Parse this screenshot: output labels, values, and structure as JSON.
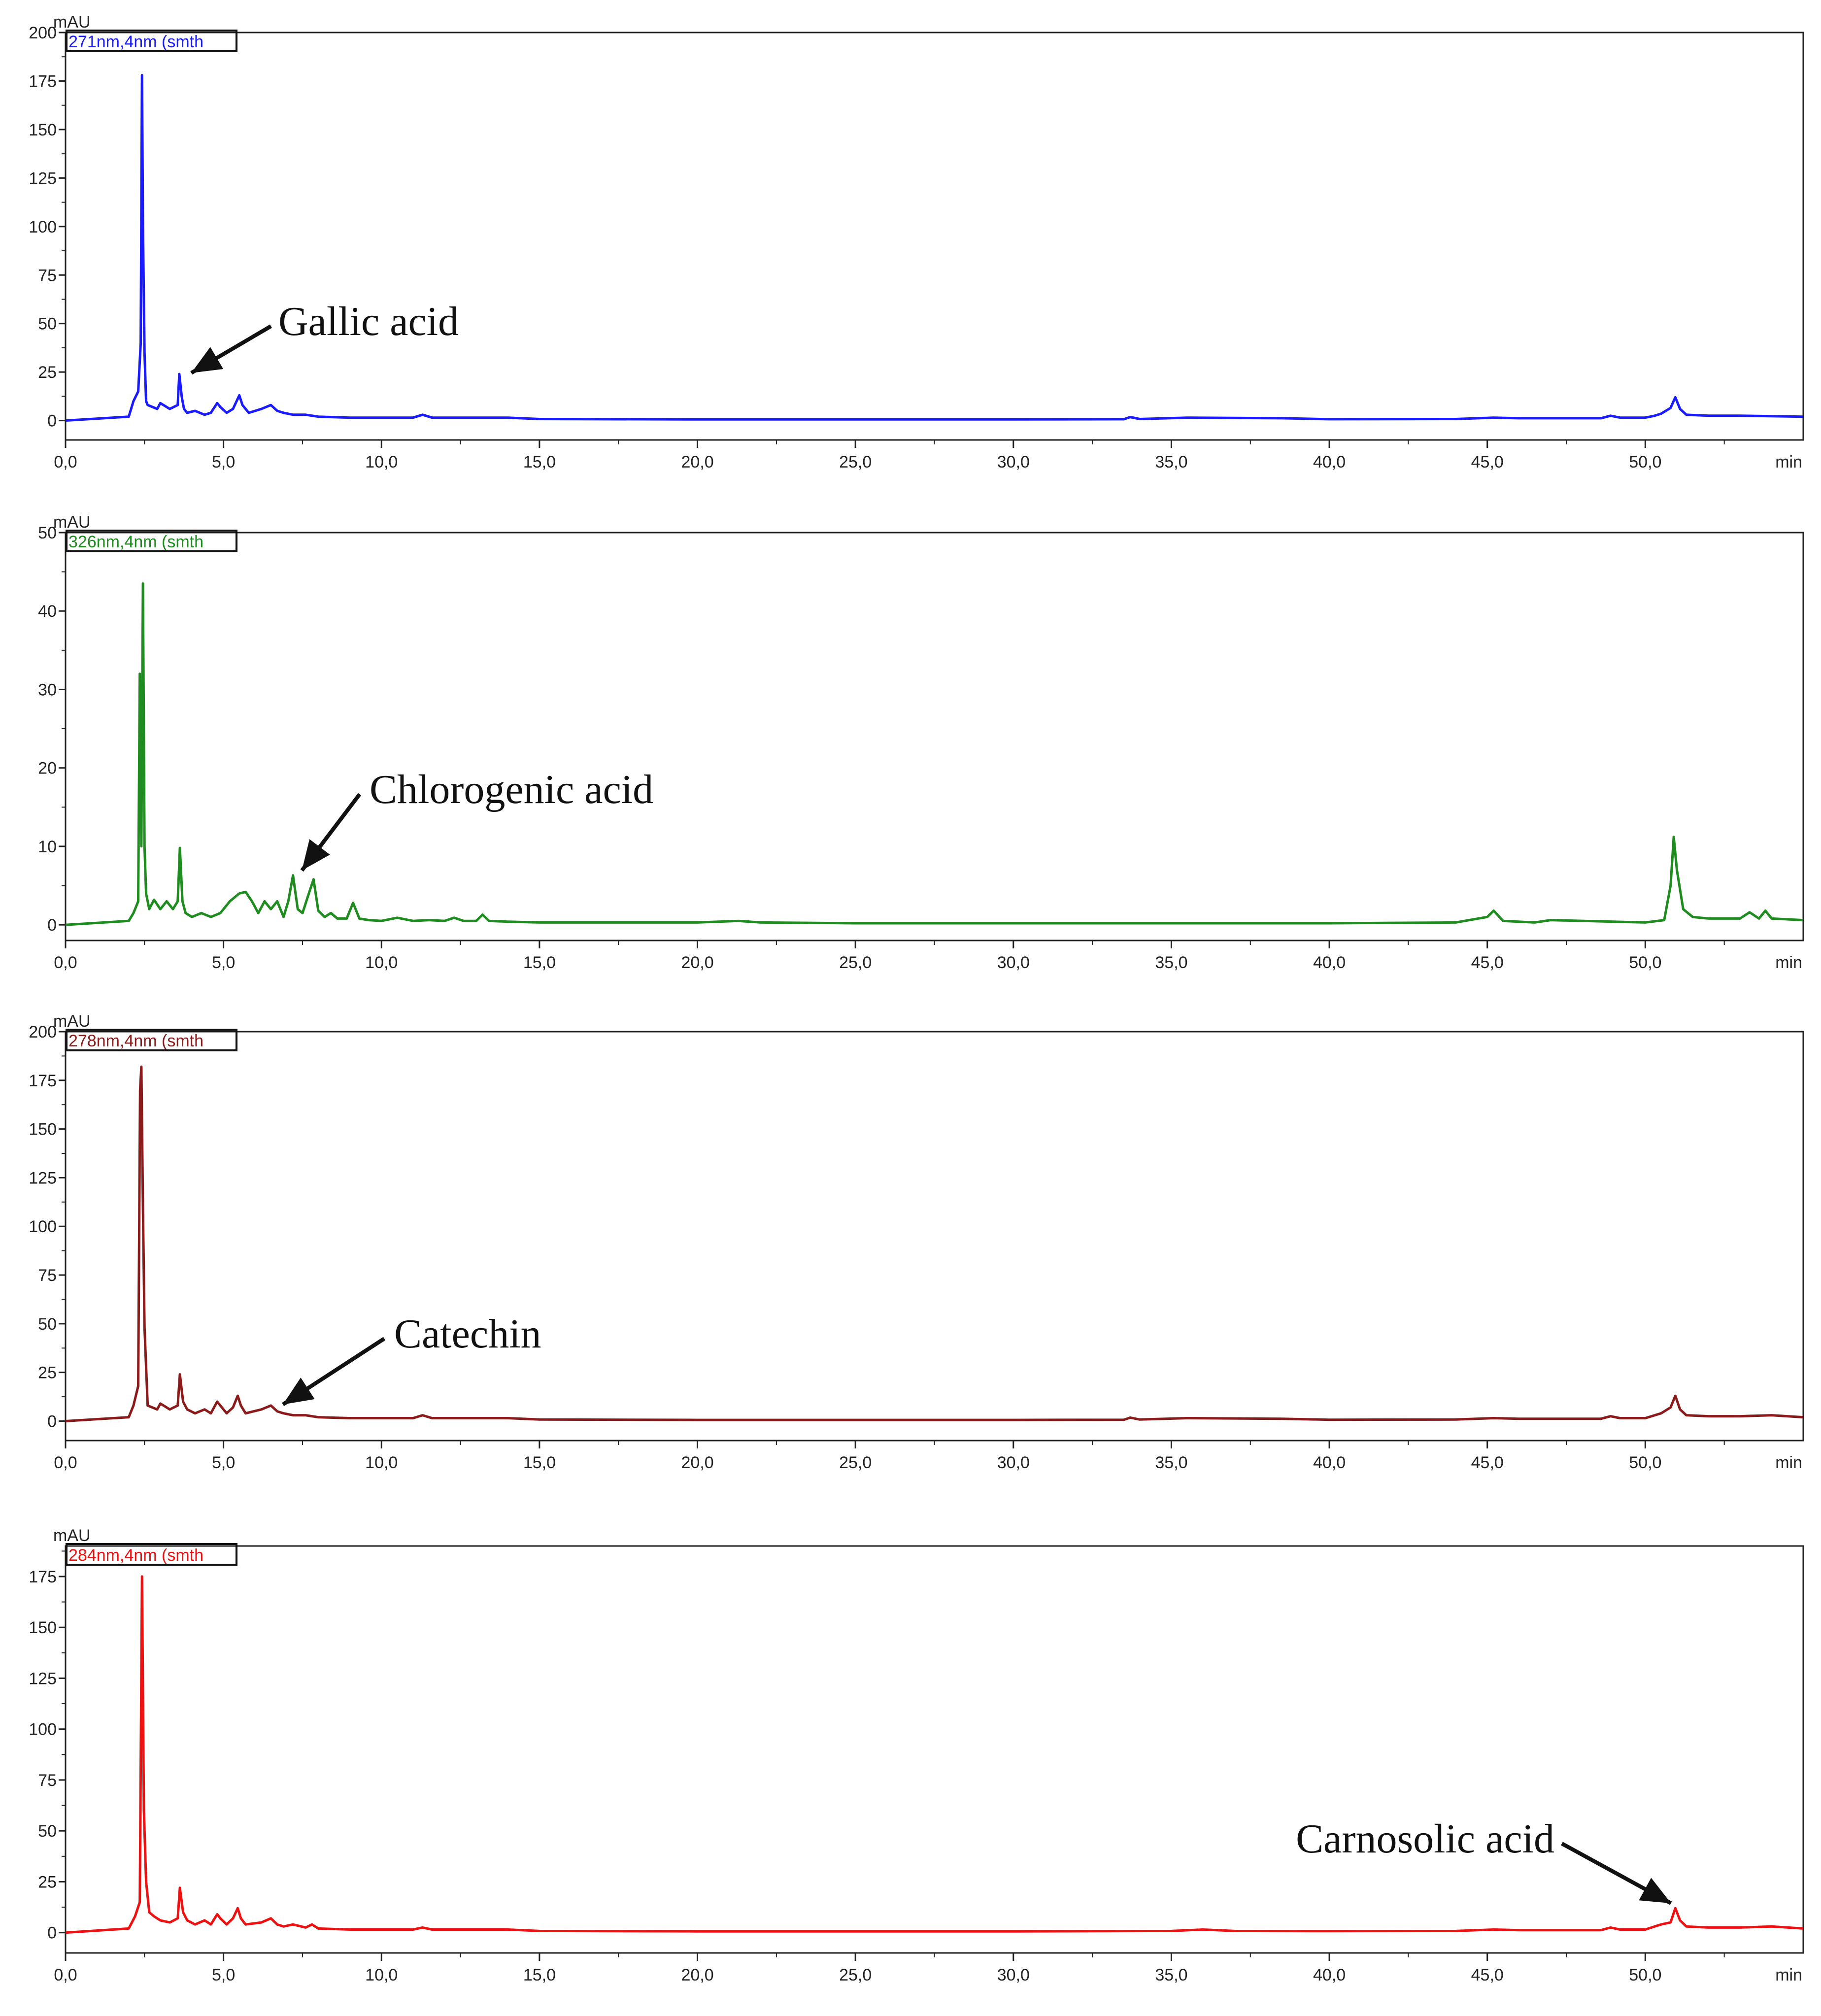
{
  "chart_data": [
    {
      "type": "line",
      "channel_label": "271nm,4nm (smth",
      "color": "#1a1aff",
      "ylabel": "mAU",
      "xlabel_unit": "min",
      "ylim": [
        -10,
        200
      ],
      "xlim": [
        0,
        55
      ],
      "x_ticks": [
        "0,0",
        "5,0",
        "10,0",
        "15,0",
        "20,0",
        "25,0",
        "30,0",
        "35,0",
        "40,0",
        "45,0",
        "50,0"
      ],
      "y_ticks": [
        "0",
        "25",
        "50",
        "75",
        "100",
        "125",
        "150",
        "175",
        "200"
      ],
      "grid": false,
      "annotation": {
        "text": "Gallic acid",
        "peak_x": 3.7,
        "peak_y": 22
      },
      "series": [
        {
          "x": [
            0,
            2.0,
            2.15,
            2.3,
            2.38,
            2.42,
            2.45,
            2.5,
            2.55,
            2.6,
            2.9,
            3.0,
            3.3,
            3.55,
            3.6,
            3.68,
            3.75,
            3.85,
            4.1,
            4.4,
            4.6,
            4.8,
            4.9,
            5.1,
            5.3,
            5.5,
            5.6,
            5.8,
            6.2,
            6.5,
            6.7,
            6.9,
            7.2,
            7.6,
            8.0,
            9.0,
            10.0,
            11.0,
            11.3,
            11.6,
            12.0,
            13.0,
            14.0,
            15.0,
            20.0,
            25.0,
            30.0,
            33.5,
            33.7,
            34.0,
            35.5,
            38.5,
            40.0,
            44.0,
            45.2,
            46.0,
            48.6,
            48.9,
            49.2,
            50.0,
            50.3,
            50.5,
            50.8,
            50.95,
            51.1,
            51.3,
            52.0,
            53.0,
            55.0
          ],
          "y": [
            0,
            2,
            10,
            15,
            40,
            178,
            100,
            35,
            10,
            8,
            6,
            9,
            6,
            8,
            24,
            12,
            6,
            4,
            5,
            3,
            4,
            9,
            7,
            4,
            6,
            13,
            8,
            4,
            6,
            8,
            5,
            4,
            3,
            3,
            2,
            1.5,
            1.5,
            1.5,
            3,
            1.5,
            1.5,
            1.5,
            1.5,
            0.8,
            0.6,
            0.6,
            0.6,
            0.7,
            1.8,
            0.8,
            1.5,
            1.2,
            0.7,
            0.8,
            1.5,
            1.2,
            1.2,
            2.5,
            1.5,
            1.5,
            2.5,
            3.5,
            6.5,
            12,
            6,
            3,
            2.5,
            2.5,
            2
          ]
        }
      ]
    },
    {
      "type": "line",
      "channel_label": "326nm,4nm (smth",
      "color": "#1e8c1e",
      "ylabel": "mAU",
      "xlabel_unit": "min",
      "ylim": [
        -2,
        50
      ],
      "xlim": [
        0,
        55
      ],
      "x_ticks": [
        "0,0",
        "5,0",
        "10,0",
        "15,0",
        "20,0",
        "25,0",
        "30,0",
        "35,0",
        "40,0",
        "45,0",
        "50,0"
      ],
      "y_ticks": [
        "0",
        "10",
        "20",
        "30",
        "40",
        "50"
      ],
      "grid": false,
      "annotation": {
        "text": "Chlorogenic acid",
        "peak_x": 7.2,
        "peak_y": 6.3
      },
      "series": [
        {
          "x": [
            0,
            2.0,
            2.15,
            2.3,
            2.35,
            2.4,
            2.45,
            2.5,
            2.55,
            2.65,
            2.8,
            3.0,
            3.2,
            3.4,
            3.55,
            3.62,
            3.7,
            3.8,
            4.0,
            4.3,
            4.6,
            4.9,
            5.2,
            5.5,
            5.7,
            5.9,
            6.1,
            6.3,
            6.5,
            6.7,
            6.9,
            7.05,
            7.2,
            7.35,
            7.5,
            7.7,
            7.85,
            8.0,
            8.2,
            8.4,
            8.6,
            8.9,
            9.1,
            9.3,
            9.6,
            10.0,
            10.5,
            11.0,
            11.5,
            12.0,
            12.3,
            12.6,
            13.0,
            13.2,
            13.4,
            14.0,
            15.0,
            20.0,
            21.3,
            22.0,
            25.0,
            30.0,
            35.0,
            40.0,
            44.0,
            45.0,
            45.2,
            45.5,
            46.5,
            47.0,
            50.0,
            50.6,
            50.8,
            50.9,
            51.0,
            51.2,
            51.5,
            52.0,
            53.0,
            53.3,
            53.6,
            53.8,
            54.0,
            55.0
          ],
          "y": [
            0,
            0.5,
            1.5,
            3,
            32,
            10,
            43.5,
            10,
            4,
            2,
            3.2,
            2,
            3,
            2,
            3,
            9.8,
            3,
            1.5,
            1,
            1.5,
            1,
            1.5,
            3,
            4,
            4.2,
            3,
            1.5,
            3,
            2,
            3,
            1,
            3,
            6.3,
            2,
            1.5,
            4,
            5.8,
            1.8,
            1,
            1.5,
            0.8,
            0.8,
            2.8,
            0.8,
            0.6,
            0.5,
            0.9,
            0.5,
            0.6,
            0.5,
            0.9,
            0.5,
            0.5,
            1.3,
            0.5,
            0.4,
            0.3,
            0.3,
            0.5,
            0.3,
            0.2,
            0.2,
            0.2,
            0.2,
            0.3,
            1,
            1.8,
            0.5,
            0.3,
            0.6,
            0.3,
            0.6,
            5,
            11.2,
            7,
            2,
            1,
            0.8,
            0.8,
            1.6,
            0.8,
            1.8,
            0.8,
            0.6
          ]
        }
      ]
    },
    {
      "type": "line",
      "channel_label": "278nm,4nm (smth",
      "color": "#8b1a1a",
      "ylabel": "mAU",
      "xlabel_unit": "min",
      "ylim": [
        -10,
        200
      ],
      "xlim": [
        0,
        55
      ],
      "x_ticks": [
        "0,0",
        "5,0",
        "10,0",
        "15,0",
        "20,0",
        "25,0",
        "30,0",
        "35,0",
        "40,0",
        "45,0",
        "50,0"
      ],
      "y_ticks": [
        "0",
        "25",
        "50",
        "75",
        "100",
        "125",
        "150",
        "175",
        "200"
      ],
      "grid": false,
      "annotation": {
        "text": "Catechin",
        "peak_x": 6.6,
        "peak_y": 6
      },
      "series": [
        {
          "x": [
            0,
            2.0,
            2.15,
            2.3,
            2.36,
            2.4,
            2.45,
            2.5,
            2.6,
            2.9,
            3.0,
            3.3,
            3.55,
            3.62,
            3.72,
            3.85,
            4.1,
            4.4,
            4.6,
            4.8,
            4.9,
            5.1,
            5.3,
            5.45,
            5.55,
            5.7,
            6.2,
            6.5,
            6.7,
            6.9,
            7.2,
            7.6,
            8.0,
            9.0,
            10.0,
            11.0,
            11.3,
            11.6,
            12.0,
            13.0,
            14.0,
            15.0,
            20.0,
            25.0,
            30.0,
            33.5,
            33.7,
            34.0,
            35.5,
            38.5,
            40.0,
            44.0,
            45.2,
            46.0,
            48.6,
            48.9,
            49.2,
            50.0,
            50.3,
            50.5,
            50.8,
            50.95,
            51.1,
            51.3,
            52.0,
            53.0,
            54.0,
            55.0
          ],
          "y": [
            0,
            2,
            8,
            18,
            170,
            182,
            110,
            48,
            8,
            6,
            9,
            6,
            8,
            24,
            10,
            6,
            4,
            6,
            4,
            10,
            8,
            4,
            7,
            13,
            8,
            4,
            6,
            8,
            5,
            4,
            3,
            3,
            2,
            1.5,
            1.5,
            1.5,
            3,
            1.5,
            1.5,
            1.5,
            1.5,
            0.8,
            0.6,
            0.6,
            0.6,
            0.7,
            1.8,
            0.8,
            1.5,
            1.2,
            0.7,
            0.8,
            1.5,
            1.2,
            1.2,
            2.5,
            1.5,
            1.5,
            3,
            4,
            7,
            13,
            6,
            3,
            2.5,
            2.5,
            3,
            2
          ]
        }
      ]
    },
    {
      "type": "line",
      "channel_label": "284nm,4nm (smth",
      "color": "#ee1111",
      "ylabel": "mAU",
      "xlabel_unit": "min",
      "ylim": [
        -10,
        190
      ],
      "xlim": [
        0,
        55
      ],
      "x_ticks": [
        "0,0",
        "5,0",
        "10,0",
        "15,0",
        "20,0",
        "25,0",
        "30,0",
        "35,0",
        "40,0",
        "45,0",
        "50,0"
      ],
      "y_ticks": [
        "0",
        "25",
        "50",
        "75",
        "100",
        "125",
        "150",
        "175"
      ],
      "grid": false,
      "annotation": {
        "text": "Carnosolic acid",
        "peak_x": 51.0,
        "peak_y": 12
      },
      "series": [
        {
          "x": [
            0,
            2.0,
            2.2,
            2.35,
            2.42,
            2.48,
            2.55,
            2.65,
            2.8,
            3.0,
            3.3,
            3.55,
            3.62,
            3.72,
            3.85,
            4.1,
            4.4,
            4.6,
            4.8,
            4.9,
            5.1,
            5.3,
            5.45,
            5.55,
            5.7,
            6.2,
            6.5,
            6.7,
            6.9,
            7.2,
            7.6,
            7.8,
            8.0,
            9.0,
            10.0,
            11.0,
            11.3,
            11.6,
            12.0,
            13.0,
            14.0,
            15.0,
            20.0,
            25.0,
            30.0,
            35.0,
            36.0,
            37.0,
            40.0,
            44.0,
            45.2,
            46.0,
            48.6,
            48.9,
            49.2,
            50.0,
            50.3,
            50.5,
            50.8,
            50.95,
            51.1,
            51.3,
            52.0,
            53.0,
            54.0,
            55.0
          ],
          "y": [
            0,
            2,
            8,
            15,
            175,
            60,
            25,
            10,
            8,
            6,
            5,
            7,
            22,
            10,
            6,
            4,
            6,
            4,
            9,
            7,
            4,
            7,
            12,
            7,
            4,
            5,
            7,
            4,
            3,
            4,
            2.5,
            4,
            2,
            1.5,
            1.5,
            1.5,
            2.5,
            1.5,
            1.5,
            1.5,
            1.5,
            0.8,
            0.6,
            0.6,
            0.6,
            0.8,
            1.5,
            0.8,
            0.7,
            0.8,
            1.5,
            1.2,
            1.2,
            2.5,
            1.5,
            1.5,
            3,
            4,
            5,
            12,
            6,
            3,
            2.5,
            2.5,
            3,
            2
          ]
        }
      ]
    }
  ]
}
